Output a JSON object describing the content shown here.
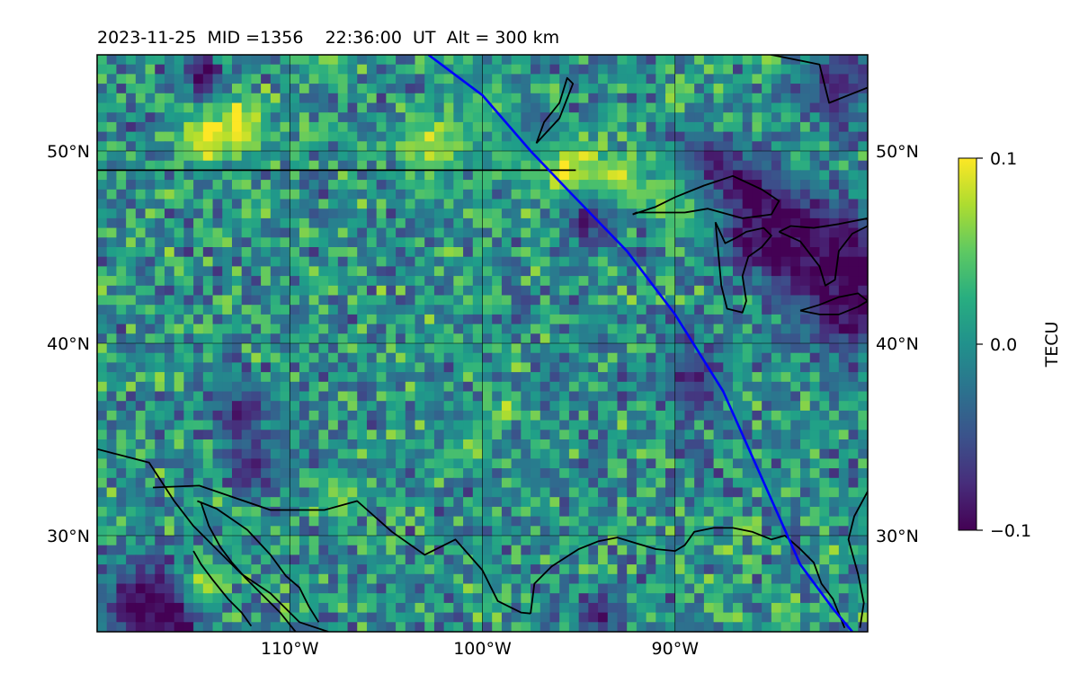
{
  "figure": {
    "title_text": "2023-11-25  MID =1356    22:36:00  UT  Alt = 300 km"
  },
  "map": {
    "lon_range": [
      -120,
      -80
    ],
    "lat_range": [
      25,
      55
    ],
    "lon_ticks": [
      {
        "lon": -110,
        "label": "110°W"
      },
      {
        "lon": -100,
        "label": "100°W"
      },
      {
        "lon": -90,
        "label": "90°W"
      }
    ],
    "lat_ticks": [
      {
        "lat": 30,
        "label": "30°N"
      },
      {
        "lat": 40,
        "label": "40°N"
      },
      {
        "lat": 50,
        "label": "50°N"
      }
    ],
    "gridlines": true,
    "colormap": "viridis",
    "colors": {
      "track": "#0000ff",
      "coastline": "#000000",
      "grid": "#000000"
    }
  },
  "colorbar": {
    "label": "TECU",
    "tick_values": [
      0.1,
      0.0,
      -0.1
    ],
    "tick_labels": [
      "0.1",
      "0.0",
      "−0.1"
    ],
    "vmin": -0.1,
    "vmax": 0.1
  },
  "chart_data": {
    "type": "heatmap",
    "title": "2023-11-25  MID =1356    22:36:00  UT  Alt = 300 km",
    "quantity": "TECU",
    "value_range": [
      -0.1,
      0.1
    ],
    "lon_range": [
      -120,
      -80
    ],
    "lat_range": [
      25,
      55
    ],
    "cell_size_deg": 0.5,
    "features": [
      {
        "lat": 51.2,
        "lon": -112.5,
        "value": 0.1,
        "radius": 1.0
      },
      {
        "lat": 50.5,
        "lon": -114.5,
        "value": 0.1,
        "radius": 0.8
      },
      {
        "lat": 50.3,
        "lon": -102.5,
        "value": 0.08,
        "radius": 1.1
      },
      {
        "lat": 49.9,
        "lon": -98.0,
        "value": 0.09,
        "radius": 1.0
      },
      {
        "lat": 49.2,
        "lon": -95.5,
        "value": 0.1,
        "radius": 1.0
      },
      {
        "lat": 48.5,
        "lon": -93.0,
        "value": 0.08,
        "radius": 0.9
      },
      {
        "lat": 47.8,
        "lon": -90.0,
        "value": 0.09,
        "radius": 1.0
      },
      {
        "lat": 46.8,
        "lon": -88.5,
        "value": 0.07,
        "radius": 1.0
      },
      {
        "lat": 27.3,
        "lon": -114.6,
        "value": 0.1,
        "radius": 0.8
      },
      {
        "lat": 36.5,
        "lon": -98.7,
        "value": 0.08,
        "radius": 0.5
      },
      {
        "lat": 26.2,
        "lon": -84.5,
        "value": 0.06,
        "radius": 0.5
      },
      {
        "lat": 34.5,
        "lon": -100.5,
        "value": 0.06,
        "radius": 0.7
      },
      {
        "lat": 32.0,
        "lon": -107.5,
        "value": 0.05,
        "radius": 0.8
      },
      {
        "lat": 50.5,
        "lon": -97.5,
        "value": -0.1,
        "radius": 1.0
      },
      {
        "lat": 48.8,
        "lon": -88.5,
        "value": -0.1,
        "radius": 1.3
      },
      {
        "lat": 47.0,
        "lon": -86.5,
        "value": -0.1,
        "radius": 1.4
      },
      {
        "lat": 45.5,
        "lon": -84.5,
        "value": -0.1,
        "radius": 1.6
      },
      {
        "lat": 44.5,
        "lon": -81.5,
        "value": -0.1,
        "radius": 1.8
      },
      {
        "lat": 41.5,
        "lon": -81.0,
        "value": -0.09,
        "radius": 1.6
      },
      {
        "lat": 46.5,
        "lon": -94.5,
        "value": -0.08,
        "radius": 0.9
      },
      {
        "lat": 54.0,
        "lon": -114.5,
        "value": -0.1,
        "radius": 0.7
      },
      {
        "lat": 26.5,
        "lon": -117.5,
        "value": -0.1,
        "radius": 1.5
      },
      {
        "lat": 25.8,
        "lon": -116.0,
        "value": -0.1,
        "radius": 1.0
      },
      {
        "lat": 33.5,
        "lon": -112.0,
        "value": -0.08,
        "radius": 1.0
      },
      {
        "lat": 36.5,
        "lon": -112.5,
        "value": -0.08,
        "radius": 0.9
      },
      {
        "lat": 38.0,
        "lon": -89.0,
        "value": -0.08,
        "radius": 1.2
      },
      {
        "lat": 25.8,
        "lon": -94.0,
        "value": -0.08,
        "radius": 0.8
      },
      {
        "lat": 53.5,
        "lon": -81.5,
        "value": -0.08,
        "radius": 1.3
      },
      {
        "lat": 52.5,
        "lon": -99.5,
        "value": 0.04,
        "radius": 1.0
      },
      {
        "lat": 54.5,
        "lon": -108.0,
        "value": 0.05,
        "radius": 0.9
      }
    ],
    "track": {
      "name": "",
      "lon": [
        -102.8,
        -100.0,
        -97.5,
        -95.5,
        -92.5,
        -90.0,
        -87.5,
        -85.5,
        -83.5,
        -81.8,
        -80.8
      ],
      "lat": [
        55.0,
        52.9,
        50.0,
        47.9,
        44.8,
        41.5,
        37.5,
        33.0,
        28.5,
        26.2,
        25.0
      ]
    },
    "coastlines": [
      {
        "name": "us-canada-border",
        "lon": [
          -120.0,
          -95.15
        ],
        "lat": [
          49.0,
          49.0
        ]
      },
      {
        "name": "pacific-coast",
        "lon": [
          -120.0,
          -117.3,
          -116.0,
          -115.0,
          -114.0,
          -112.5,
          -111.0,
          -110.0,
          -109.5,
          -108.0
        ],
        "lat": [
          34.5,
          33.8,
          31.8,
          30.5,
          29.5,
          28.0,
          27.0,
          26.0,
          25.5,
          25.0
        ]
      },
      {
        "name": "gulf-of-california-west",
        "lon": [
          -114.6,
          -114.2,
          -113.6,
          -113.0,
          -112.3,
          -111.5,
          -110.5,
          -109.7
        ],
        "lat": [
          31.7,
          30.5,
          29.4,
          28.6,
          27.8,
          27.0,
          26.0,
          25.0
        ]
      },
      {
        "name": "gulf-of-california-east",
        "lon": [
          -114.8,
          -113.8,
          -112.2,
          -111.0,
          -110.2,
          -109.5,
          -109.0,
          -108.5
        ],
        "lat": [
          31.8,
          31.4,
          30.3,
          29.0,
          27.9,
          27.3,
          26.3,
          25.5
        ]
      },
      {
        "name": "baja-inner",
        "lon": [
          -115.0,
          -114.6,
          -114.0,
          -113.2,
          -112.5,
          -112.0
        ],
        "lat": [
          29.2,
          28.5,
          27.7,
          26.7,
          26.0,
          25.3
        ]
      },
      {
        "name": "us-mexico-border",
        "lon": [
          -117.1,
          -114.7,
          -111.0,
          -108.2,
          -106.5,
          -104.7,
          -103.0,
          -101.4,
          -100.0,
          -99.2,
          -98.0,
          -97.5
        ],
        "lat": [
          32.5,
          32.6,
          31.33,
          31.33,
          31.8,
          30.2,
          29.0,
          29.8,
          28.2,
          26.6,
          26.0,
          25.95
        ]
      },
      {
        "name": "gulf-coast",
        "lon": [
          -97.5,
          -97.3,
          -96.4,
          -95.0,
          -94.0,
          -93.0,
          -92.0,
          -91.0,
          -90.0,
          -89.5,
          -89.0,
          -88.0,
          -87.0,
          -86.0,
          -85.0,
          -84.3,
          -83.5,
          -82.8,
          -82.4,
          -81.8,
          -81.2
        ],
        "lat": [
          25.95,
          27.5,
          28.4,
          29.3,
          29.7,
          29.9,
          29.6,
          29.3,
          29.2,
          29.5,
          30.2,
          30.4,
          30.4,
          30.2,
          29.8,
          30.0,
          29.3,
          28.6,
          27.5,
          26.7,
          25.2
        ]
      },
      {
        "name": "atlantic-coast",
        "lon": [
          -80.4,
          -80.2,
          -80.5,
          -81.0,
          -80.7,
          -80.0
        ],
        "lat": [
          25.2,
          26.5,
          28.0,
          29.8,
          31.0,
          32.3
        ]
      },
      {
        "name": "hudson-bay",
        "lon": [
          -80.0,
          -82.0,
          -82.5,
          -85.0,
          -86.5,
          -87.5
        ],
        "lat": [
          53.3,
          52.5,
          54.5,
          55.0,
          55.5,
          55.0
        ]
      },
      {
        "name": "lake-winnipeg",
        "lon": [
          -97.2,
          -96.8,
          -96.0,
          -95.6,
          -95.3,
          -96.0,
          -97.2
        ],
        "lat": [
          50.4,
          51.5,
          52.5,
          53.8,
          53.5,
          51.7,
          50.4
        ]
      },
      {
        "name": "lake-superior",
        "lon": [
          -92.2,
          -91.0,
          -90.0,
          -88.5,
          -87.0,
          -85.5,
          -84.6,
          -85.0,
          -86.5,
          -88.3,
          -89.5,
          -90.5,
          -92.0,
          -92.2
        ],
        "lat": [
          46.7,
          47.1,
          47.6,
          48.2,
          48.7,
          48.0,
          47.4,
          46.7,
          46.5,
          47.0,
          46.8,
          46.8,
          46.8,
          46.7
        ]
      },
      {
        "name": "lake-michigan",
        "lon": [
          -87.9,
          -87.8,
          -87.6,
          -87.3,
          -86.5,
          -86.3,
          -86.5,
          -86.2,
          -85.5,
          -85.0,
          -85.4,
          -86.3,
          -86.8,
          -87.4,
          -87.9
        ],
        "lat": [
          46.3,
          45.2,
          43.0,
          41.8,
          41.6,
          42.2,
          43.5,
          44.5,
          45.0,
          45.6,
          46.0,
          45.8,
          45.5,
          45.2,
          46.3
        ]
      },
      {
        "name": "lake-huron",
        "lon": [
          -84.6,
          -83.5,
          -82.5,
          -82.2,
          -81.7,
          -81.5,
          -80.8,
          -80.0,
          -80.0,
          -81.5,
          -82.8,
          -84.0,
          -84.6
        ],
        "lat": [
          45.8,
          45.3,
          44.0,
          43.0,
          43.3,
          44.8,
          45.7,
          46.1,
          46.5,
          46.2,
          46.0,
          46.1,
          45.8
        ]
      },
      {
        "name": "lake-erie",
        "lon": [
          -83.5,
          -82.5,
          -81.5,
          -80.5,
          -80.0,
          -80.5,
          -81.5,
          -82.5,
          -83.5
        ],
        "lat": [
          41.7,
          41.5,
          41.5,
          41.9,
          42.2,
          42.6,
          42.4,
          42.0,
          41.7
        ]
      }
    ]
  }
}
